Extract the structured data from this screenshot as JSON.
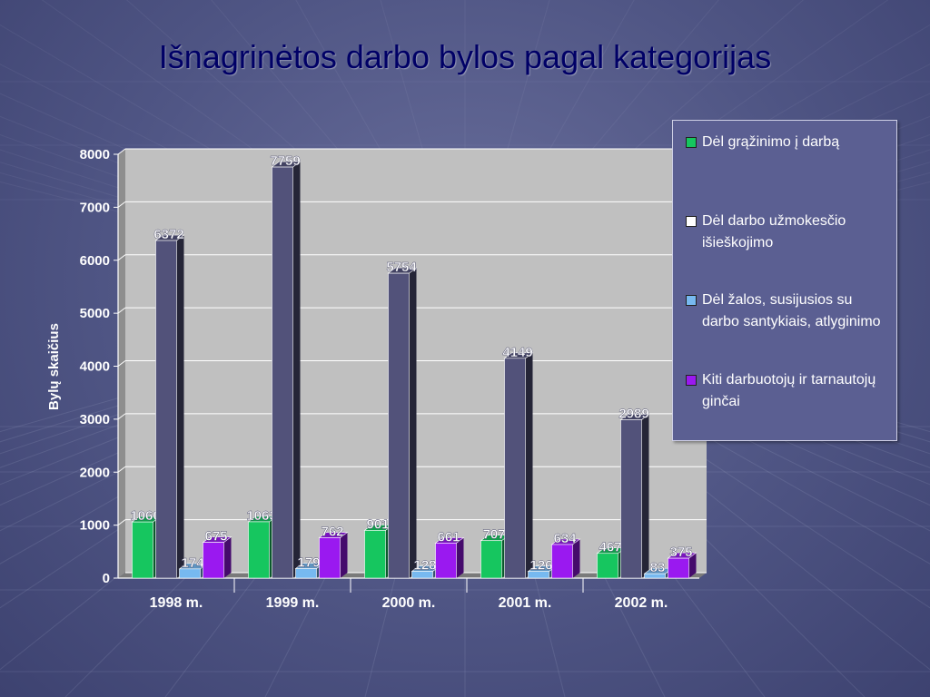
{
  "title": "Išnagrinėtos darbo bylos pagal kategorijas",
  "colors": {
    "background": "#4f5584",
    "title": "#000066",
    "plot_area": "#c0c0c0"
  },
  "chart_data": {
    "type": "bar",
    "title": "",
    "xlabel": "",
    "ylabel": "Bylų skaičius",
    "ylim": [
      0,
      8000
    ],
    "yticks": [
      "0",
      "1000",
      "2000",
      "3000",
      "4000",
      "5000",
      "6000",
      "7000",
      "8000"
    ],
    "categories": [
      "1998 m.",
      "1999 m.",
      "2000 m.",
      "2001 m.",
      "2002 m."
    ],
    "grid": true,
    "legend_position": "right",
    "series": [
      {
        "name": "Dėl grąžinimo į darbą",
        "color": "#16c65f",
        "values": [
          1060,
          1063,
          901,
          707,
          467
        ]
      },
      {
        "name": "Dėl darbo užmokesčio išieškojimo",
        "color": "#52527a",
        "values": [
          6372,
          7759,
          5754,
          4149,
          2989
        ]
      },
      {
        "name": "Dėl žalos, susijusios su darbo santykiais, atlyginimo",
        "color": "#77b9f0",
        "values": [
          174,
          179,
          128,
          126,
          83
        ]
      },
      {
        "name": "Kiti darbuotojų ir tarnautojų ginčai",
        "color": "#9a19f0",
        "values": [
          675,
          762,
          661,
          634,
          375
        ]
      }
    ]
  },
  "legend": {
    "items": [
      {
        "label": "Dėl grąžinimo į darbą",
        "color": "#16c65f"
      },
      {
        "label": "Dėl darbo užmokesčio išieškojimo",
        "color": "#52527a"
      },
      {
        "label": "Dėl žalos, susijusios su darbo santykiais, atlyginimo",
        "color": "#77b9f0"
      },
      {
        "label": "Kiti darbuotojų ir tarnautojų ginčai",
        "color": "#9a19f0"
      }
    ]
  }
}
